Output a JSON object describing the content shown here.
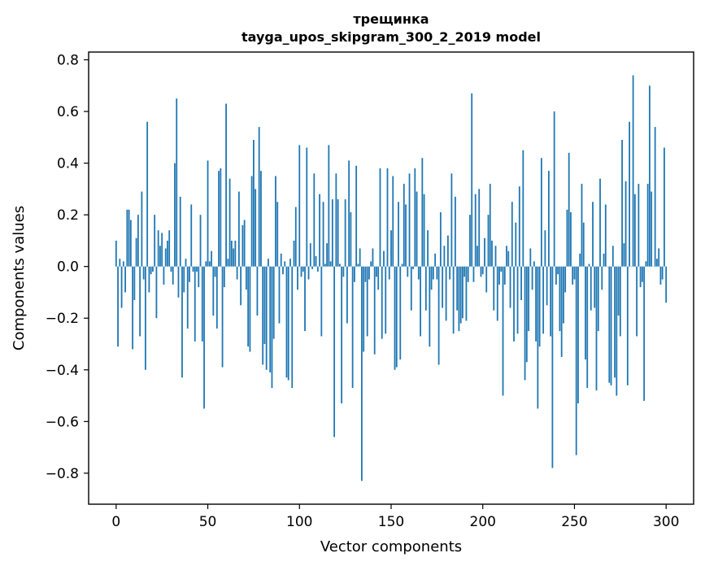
{
  "chart_data": {
    "type": "bar",
    "title": "трещинка",
    "subtitle": "tayga_upos_skipgram_300_2_2019 model",
    "xlabel": "Vector components",
    "ylabel": "Components values",
    "xlim": [
      -15,
      315
    ],
    "ylim": [
      -0.92,
      0.83
    ],
    "xticks": [
      0,
      50,
      100,
      150,
      200,
      250,
      300
    ],
    "xtick_labels": [
      "0",
      "50",
      "100",
      "150",
      "200",
      "250",
      "300"
    ],
    "yticks": [
      -0.8,
      -0.6,
      -0.4,
      -0.2,
      0.0,
      0.2,
      0.4,
      0.6,
      0.8
    ],
    "ytick_labels": [
      "−0.8",
      "−0.6",
      "−0.4",
      "−0.2",
      "0.0",
      "0.2",
      "0.4",
      "0.6",
      "0.8"
    ],
    "bar_color": "#1f77b4",
    "grid": false,
    "series": [
      {
        "values": [
          0.1,
          -0.31,
          0.03,
          -0.16,
          0.02,
          -0.1,
          0.22,
          0.22,
          0.18,
          -0.32,
          -0.13,
          0.11,
          0.2,
          -0.27,
          0.29,
          -0.05,
          -0.4,
          0.56,
          -0.1,
          -0.03,
          -0.02,
          0.2,
          -0.2,
          0.14,
          0.08,
          0.13,
          -0.07,
          0.07,
          0.1,
          0.14,
          -0.02,
          -0.07,
          0.4,
          0.65,
          -0.12,
          0.27,
          -0.43,
          -0.1,
          0.03,
          -0.24,
          -0.06,
          0.24,
          -0.02,
          -0.29,
          -0.02,
          -0.08,
          0.2,
          -0.29,
          -0.55,
          0.02,
          0.41,
          0.02,
          0.06,
          -0.19,
          -0.04,
          -0.24,
          0.37,
          0.38,
          -0.39,
          -0.08,
          0.63,
          0.03,
          0.34,
          0.1,
          0.07,
          0.1,
          -0.05,
          0.29,
          -0.15,
          0.16,
          0.18,
          -0.09,
          -0.31,
          -0.33,
          0.35,
          0.49,
          0.3,
          -0.19,
          0.54,
          0.37,
          -0.38,
          -0.3,
          -0.4,
          0.03,
          -0.41,
          -0.47,
          -0.28,
          0.35,
          0.25,
          -0.22,
          0.05,
          -0.03,
          0.02,
          -0.43,
          -0.44,
          0.03,
          -0.47,
          0.1,
          0.23,
          -0.09,
          0.47,
          -0.04,
          -0.02,
          -0.25,
          0.46,
          -0.05,
          0.09,
          -0.01,
          0.36,
          0.04,
          -0.02,
          0.28,
          -0.27,
          0.25,
          0.01,
          0.09,
          0.47,
          0.02,
          0.26,
          -0.66,
          0.36,
          0.26,
          0.01,
          -0.53,
          -0.04,
          0.26,
          -0.22,
          0.41,
          0.21,
          -0.47,
          -0.06,
          0.39,
          0.01,
          0.07,
          -0.83,
          -0.33,
          -0.06,
          -0.27,
          -0.05,
          0.02,
          0.07,
          -0.34,
          -0.04,
          -0.09,
          0.38,
          -0.28,
          0.06,
          -0.26,
          0.38,
          -0.05,
          0.14,
          0.35,
          -0.4,
          -0.39,
          0.25,
          -0.36,
          0.01,
          0.32,
          0.24,
          -0.04,
          0.36,
          -0.17,
          -0.01,
          0.38,
          0.29,
          -0.05,
          -0.27,
          0.42,
          0.28,
          -0.17,
          0.14,
          -0.31,
          -0.09,
          -0.05,
          0.05,
          -0.05,
          -0.38,
          0.21,
          -0.16,
          0.08,
          -0.21,
          0.12,
          -0.05,
          0.36,
          -0.26,
          0.27,
          -0.17,
          -0.25,
          -0.22,
          -0.2,
          -0.04,
          -0.21,
          -0.06,
          0.2,
          0.67,
          -0.06,
          0.28,
          0.08,
          0.3,
          -0.04,
          -0.03,
          0.11,
          -0.1,
          0.2,
          0.32,
          0.1,
          -0.17,
          0.08,
          -0.21,
          -0.07,
          -0.02,
          -0.5,
          -0.07,
          0.08,
          0.06,
          -0.16,
          0.25,
          -0.29,
          0.17,
          -0.26,
          0.31,
          -0.13,
          0.45,
          -0.44,
          -0.37,
          -0.25,
          0.07,
          -0.09,
          0.02,
          -0.29,
          -0.55,
          -0.31,
          0.42,
          -0.26,
          0.14,
          -0.15,
          0.37,
          -0.27,
          -0.78,
          0.6,
          -0.07,
          -0.03,
          -0.25,
          -0.35,
          -0.22,
          -0.1,
          0.22,
          0.44,
          0.21,
          -0.07,
          -0.05,
          -0.73,
          -0.53,
          0.05,
          0.32,
          0.17,
          -0.36,
          -0.47,
          0.01,
          -0.17,
          0.25,
          -0.16,
          -0.48,
          -0.25,
          0.34,
          -0.09,
          0.05,
          0.24,
          0.0,
          -0.45,
          -0.46,
          0.08,
          -0.43,
          -0.5,
          -0.19,
          -0.27,
          0.49,
          0.09,
          0.33,
          -0.46,
          0.56,
          0.0,
          0.74,
          0.28,
          -0.27,
          0.32,
          -0.08,
          -0.06,
          -0.52,
          0.02,
          0.32,
          0.7,
          0.29,
          0.0,
          0.54,
          0.03,
          0.07,
          -0.07,
          -0.05,
          0.46,
          -0.14
        ]
      }
    ]
  }
}
